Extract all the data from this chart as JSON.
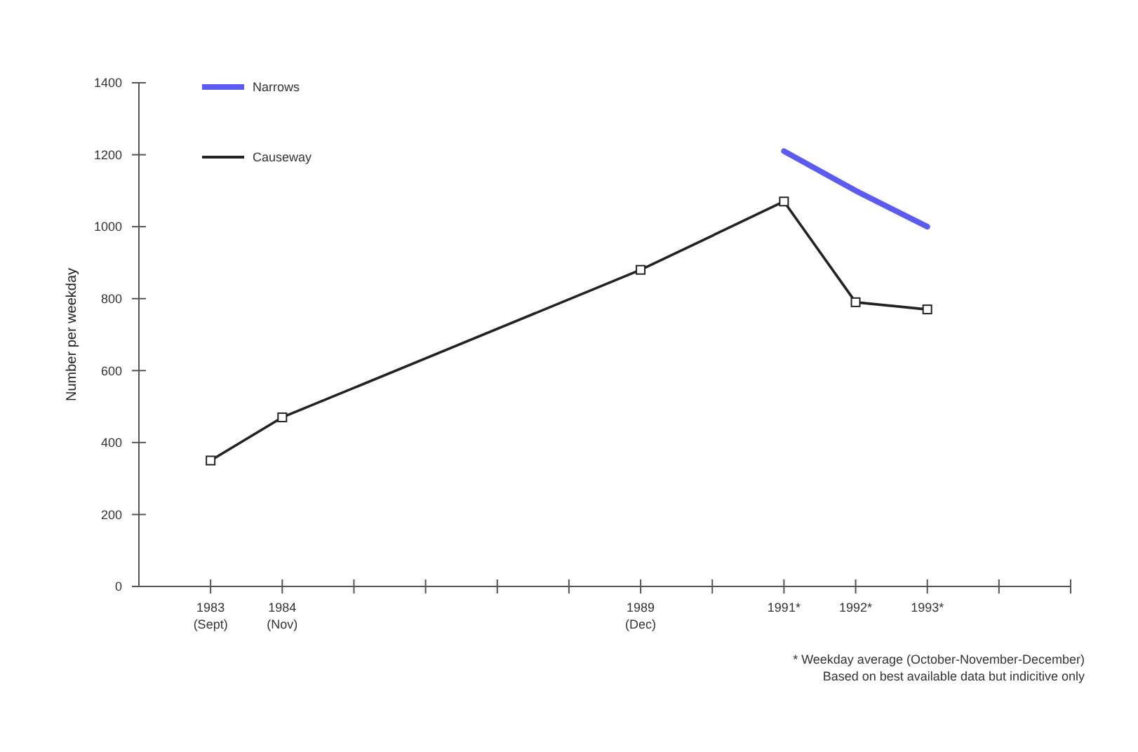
{
  "chart_data": {
    "type": "line",
    "ylabel": "Number per weekday",
    "xlim": [
      1982,
      1995
    ],
    "xticks": [
      {
        "value": 1983,
        "label": "1983\n(Sept)"
      },
      {
        "value": 1984,
        "label": "1984\n(Nov)"
      },
      {
        "value": 1985,
        "label": null
      },
      {
        "value": 1986,
        "label": null
      },
      {
        "value": 1987,
        "label": null
      },
      {
        "value": 1988,
        "label": null
      },
      {
        "value": 1989,
        "label": "1989\n(Dec)"
      },
      {
        "value": 1990,
        "label": null
      },
      {
        "value": 1991,
        "label": "1991*"
      },
      {
        "value": 1992,
        "label": "1992*"
      },
      {
        "value": 1993,
        "label": "1993*"
      },
      {
        "value": 1994,
        "label": null
      },
      {
        "value": 1995,
        "label": null
      }
    ],
    "ylim": [
      0,
      1400
    ],
    "yticks": [
      0,
      200,
      400,
      600,
      800,
      1000,
      1200,
      1400
    ],
    "grid": false,
    "legend": "top left",
    "line_style": "solid",
    "series": [
      {
        "name": "Narrows",
        "color": "#5b5bf0",
        "x": [
          1991,
          1992,
          1993
        ],
        "values": [
          1210,
          1100,
          1000
        ],
        "marker": "none"
      },
      {
        "name": "Causeway",
        "color": "#222222",
        "x": [
          1983,
          1984,
          1989,
          1991,
          1992,
          1993
        ],
        "values": [
          350,
          470,
          880,
          1070,
          790,
          770
        ],
        "marker": "square"
      }
    ],
    "annotations": [
      "* Weekday average (October-November-December)",
      "Based on best available data but indicitive only"
    ]
  }
}
